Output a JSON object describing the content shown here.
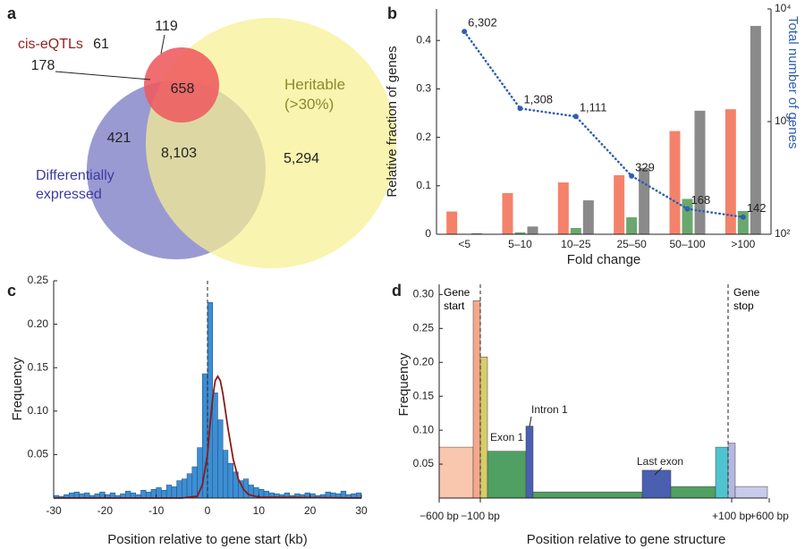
{
  "chart_data": [
    {
      "type": "venn",
      "panel": "a",
      "sets": [
        {
          "name": "cis-eQTLs",
          "color": "#ee5a5e"
        },
        {
          "name": "Heritable (>30%)",
          "color": "#f6f090"
        },
        {
          "name": "Differentially expressed",
          "color": "#9a9ad2"
        }
      ],
      "values": [
        119,
        61,
        178,
        658,
        421,
        8103,
        5294
      ],
      "value_labels": [
        "119",
        "61",
        "178",
        "658",
        "421",
        "8,103",
        "5,294"
      ]
    },
    {
      "type": "bar",
      "panel": "b",
      "categories": [
        "<5",
        "5–10",
        "10–25",
        "25–50",
        "50–100",
        ">100"
      ],
      "series": [
        {
          "color": "#f4826a",
          "values": [
            0.047,
            0.085,
            0.107,
            0.122,
            0.213,
            0.258
          ]
        },
        {
          "color": "#6aa86e",
          "values": [
            0,
            0.004,
            0.013,
            0.035,
            0.073,
            0.048
          ]
        },
        {
          "color": "#8a8a8a",
          "values": [
            0.002,
            0.016,
            0.07,
            0.137,
            0.255,
            0.43
          ]
        },
        {
          "type": "line",
          "axis": "y2",
          "line_style": "dotted",
          "color": "#2f5fb0",
          "values": [
            6302,
            1308,
            1111,
            329,
            168,
            142
          ],
          "value_labels": [
            "6,302",
            "1,308",
            "1,111",
            "329",
            "168",
            "142"
          ]
        }
      ],
      "x_label": "Fold change",
      "y_label": "Relative fraction of genes",
      "y2_label": "Total number of genes",
      "ylim": [
        0,
        0.465
      ],
      "yticks": [
        0,
        0.1,
        0.2,
        0.3,
        0.4
      ],
      "y2lim": [
        100,
        10000
      ],
      "y2_log": true,
      "y2ticks": [
        {
          "value": 100,
          "label": "10²"
        },
        {
          "value": 1000,
          "label": "10³"
        },
        {
          "value": 10000,
          "label": "10⁴"
        }
      ]
    },
    {
      "type": "histogram",
      "panel": "c",
      "bins": [
        -30,
        -29,
        -28,
        -27,
        -26,
        -25,
        -24,
        -23,
        -22,
        -21,
        -20,
        -19,
        -18,
        -17,
        -16,
        -15,
        -14,
        -13,
        -12,
        -11,
        -10,
        -9,
        -8,
        -7,
        -6,
        -5,
        -4,
        -3,
        -2,
        -1,
        0,
        1,
        2,
        3,
        4,
        5,
        6,
        7,
        8,
        9,
        10,
        11,
        12,
        13,
        14,
        15,
        16,
        17,
        18,
        19,
        20,
        21,
        22,
        23,
        24,
        25,
        26,
        27,
        28,
        29,
        30
      ],
      "values": [
        0.003,
        0.002,
        0.004,
        0.006,
        0.007,
        0.005,
        0.006,
        0.003,
        0.005,
        0.007,
        0.004,
        0.006,
        0.003,
        0.005,
        0.008,
        0.006,
        0.004,
        0.009,
        0.007,
        0.01,
        0.012,
        0.009,
        0.015,
        0.013,
        0.02,
        0.022,
        0.028,
        0.036,
        0.058,
        0.143,
        0.225,
        0.121,
        0.09,
        0.055,
        0.04,
        0.03,
        0.02,
        0.022,
        0.015,
        0.012,
        0.01,
        0.008,
        0.006,
        0.005,
        0.004,
        0.006,
        0.003,
        0.005,
        0.004,
        0.006,
        0.005,
        0.003,
        0.004,
        0.007,
        0.006,
        0.005,
        0.008,
        0.004,
        0.005,
        0.006
      ],
      "color": "#3d8ed3",
      "curve": {
        "color": "#8b1a1a",
        "x": [
          -30,
          -5,
          -2,
          -1,
          0,
          0.5,
          1,
          1.5,
          2,
          2.5,
          3,
          4,
          5,
          6,
          7,
          8,
          10,
          30
        ],
        "values": [
          0,
          0,
          0.002,
          0.015,
          0.05,
          0.085,
          0.115,
          0.135,
          0.14,
          0.135,
          0.12,
          0.08,
          0.045,
          0.022,
          0.01,
          0.004,
          0.001,
          0
        ]
      },
      "xlim": [
        -30,
        30
      ],
      "xticks": [
        -30,
        -20,
        -10,
        0,
        10,
        20,
        30
      ],
      "ylim": [
        0,
        0.25
      ],
      "yticks": [
        0.05,
        {
          "value": 0.1,
          "label": "0.10"
        },
        0.15,
        {
          "value": 0.2,
          "label": "0.20"
        },
        0.25
      ],
      "x_label": "Position relative to gene start  (kb)",
      "y_label": "Frequency"
    },
    {
      "type": "bar",
      "panel": "d",
      "values": [
        0.075,
        0.291,
        0.208,
        0.069,
        0.106,
        0.009,
        0.041,
        0.017,
        0.075,
        0.081,
        0.017
      ],
      "colors": [
        "#f9c6ae",
        "#f4a88b",
        "#d6cd6a",
        "#4fa062",
        "#4a5fb0",
        "#4fa062",
        "#4a5fb0",
        "#4fa062",
        "#4fc4cf",
        "#b4b8e0",
        "#c8cbe9"
      ],
      "annotations": [
        "Gene start",
        "Gene stop",
        "Exon 1",
        "Intron 1",
        "Last exon"
      ],
      "xtick_labels": [
        "−600 bp",
        "−100 bp",
        "+100 bp",
        "+600 bp"
      ],
      "ylim": [
        0,
        0.315
      ],
      "yticks": [
        0.05,
        {
          "value": 0.1,
          "label": "0.10"
        },
        0.15,
        {
          "value": 0.2,
          "label": "0.20"
        },
        0.25,
        {
          "value": 0.3,
          "label": "0.30"
        }
      ],
      "x_label": "Position relative to gene structure",
      "y_label": "Frequency"
    }
  ]
}
